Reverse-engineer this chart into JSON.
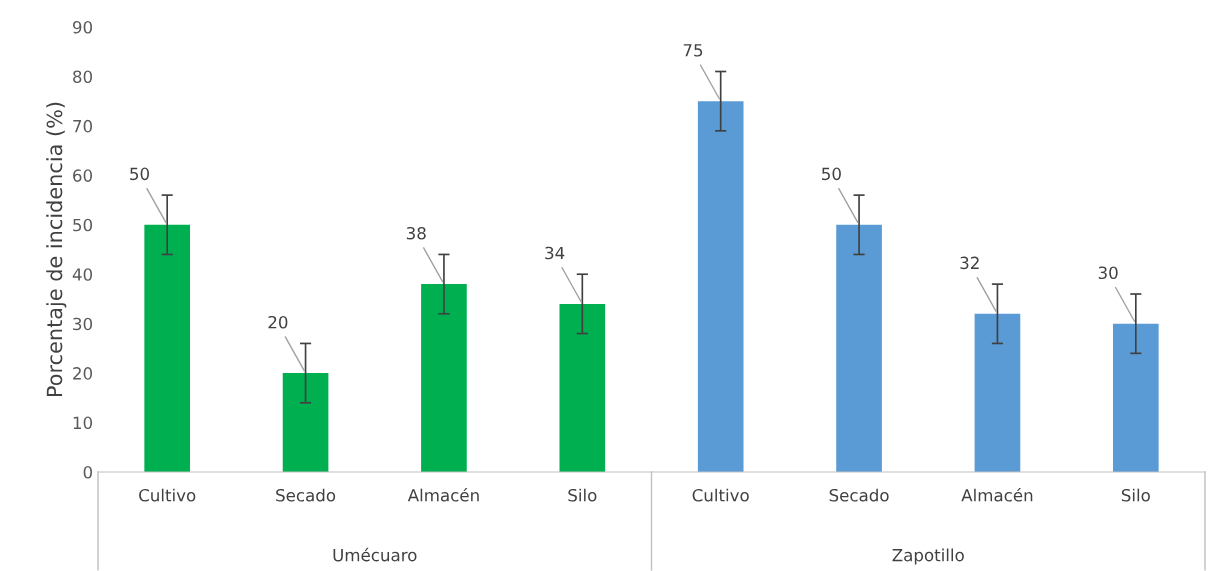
{
  "chart_data": {
    "type": "bar",
    "ylabel": "Porcentaje de incidencia (%)",
    "categories": [
      "Cultivo",
      "Secado",
      "Almacén",
      "Silo",
      "Cultivo",
      "Secado",
      "Almacén",
      "Silo"
    ],
    "values": [
      50,
      20,
      38,
      34,
      75,
      50,
      32,
      30
    ],
    "errors": [
      6,
      6,
      6,
      6,
      6,
      6,
      6,
      6
    ],
    "colors": [
      "#00b050",
      "#00b050",
      "#00b050",
      "#00b050",
      "#5b9bd5",
      "#5b9bd5",
      "#5b9bd5",
      "#5b9bd5"
    ],
    "ylim": [
      0,
      90
    ],
    "yticks": [
      0,
      10,
      20,
      30,
      40,
      50,
      60,
      70,
      80,
      90
    ],
    "grid": false,
    "data_labels": true,
    "legend": false,
    "annotations": [
      "Umécuaro",
      "Zapotillo"
    ]
  }
}
